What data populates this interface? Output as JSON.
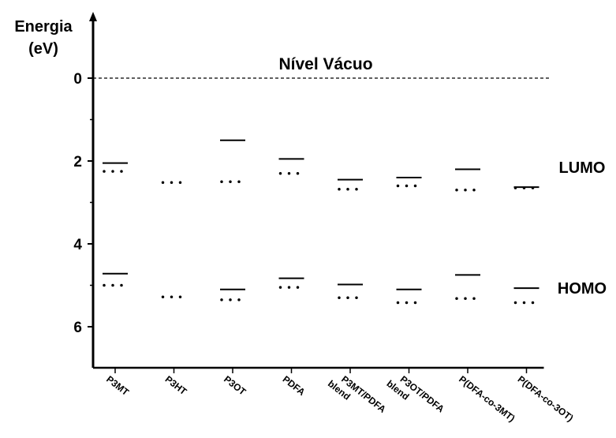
{
  "chart_data": {
    "type": "scatter",
    "ylabel_line1": "Energia",
    "ylabel_line2": "(eV)",
    "vacuum_label": "Nível Vácuo",
    "lumo_label": "LUMO",
    "homo_label": "HOMO",
    "ylim": [
      0,
      7
    ],
    "y_inverted": true,
    "yticks": [
      0,
      2,
      4,
      6
    ],
    "grid": false,
    "categories": [
      [
        "P3MT"
      ],
      [
        "P3HT"
      ],
      [
        "P3OT"
      ],
      [
        "PDFA"
      ],
      [
        "P3MT/PDFA",
        "blend"
      ],
      [
        "P3OT/PDFA",
        "blend"
      ],
      [
        "P(DFA-co-3MT)"
      ],
      [
        "P(DFA-co-3OT)"
      ]
    ],
    "series": [
      {
        "level": "LUMO",
        "style": "solid",
        "values": [
          2.05,
          null,
          1.5,
          1.95,
          2.45,
          2.4,
          2.2,
          2.63
        ]
      },
      {
        "level": "LUMO",
        "style": "dotted",
        "values": [
          2.25,
          2.52,
          2.5,
          2.3,
          2.68,
          2.6,
          2.7,
          2.65
        ]
      },
      {
        "level": "HOMO",
        "style": "solid",
        "values": [
          4.72,
          null,
          5.1,
          4.83,
          4.98,
          5.1,
          4.75,
          5.07
        ]
      },
      {
        "level": "HOMO",
        "style": "dotted",
        "values": [
          5.0,
          5.28,
          5.35,
          5.05,
          5.3,
          5.42,
          5.32,
          5.42
        ]
      }
    ]
  }
}
